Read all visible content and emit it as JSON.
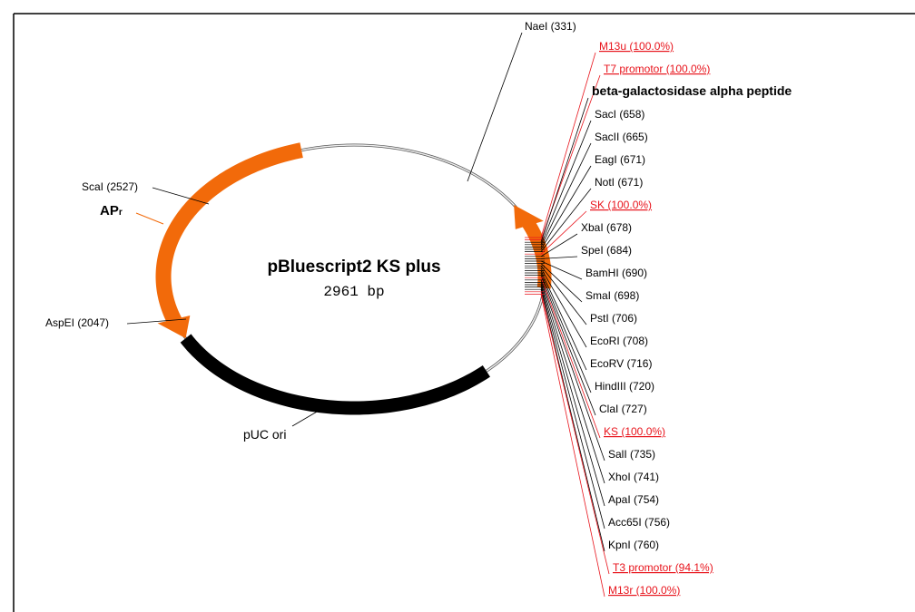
{
  "title": "pBluescript2 KS plus",
  "size": "2961 bp",
  "features": {
    "nae": "NaeI (331)",
    "sca": "ScaI (2527)",
    "apr": {
      "text": "AP",
      "sub": "r"
    },
    "asp": "AspEI (2047)",
    "puc": "pUC ori"
  },
  "sites": [
    {
      "text": "M13u (100.0%)",
      "color": "#e8141c"
    },
    {
      "text": "T7 promotor (100.0%)",
      "color": "#e8141c"
    },
    {
      "text": "beta-galactosidase alpha peptide",
      "color": "#000000"
    },
    {
      "text": "SacI (658)",
      "color": "#000000"
    },
    {
      "text": "SacII (665)",
      "color": "#000000"
    },
    {
      "text": "EagI (671)",
      "color": "#000000"
    },
    {
      "text": "NotI (671)",
      "color": "#000000"
    },
    {
      "text": "SK (100.0%)",
      "color": "#e8141c"
    },
    {
      "text": "XbaI (678)",
      "color": "#000000"
    },
    {
      "text": "SpeI (684)",
      "color": "#000000"
    },
    {
      "text": "BamHI (690)",
      "color": "#000000"
    },
    {
      "text": "SmaI (698)",
      "color": "#000000"
    },
    {
      "text": "PstI (706)",
      "color": "#000000"
    },
    {
      "text": "EcoRI (708)",
      "color": "#000000"
    },
    {
      "text": "EcoRV (716)",
      "color": "#000000"
    },
    {
      "text": "HindIII (720)",
      "color": "#000000"
    },
    {
      "text": "ClaI (727)",
      "color": "#000000"
    },
    {
      "text": "KS (100.0%)",
      "color": "#e8141c"
    },
    {
      "text": "SalI (735)",
      "color": "#000000"
    },
    {
      "text": "XhoI (741)",
      "color": "#000000"
    },
    {
      "text": "ApaI (754)",
      "color": "#000000"
    },
    {
      "text": "Acc65I (756)",
      "color": "#000000"
    },
    {
      "text": "KpnI (760)",
      "color": "#000000"
    },
    {
      "text": "T3 promotor (94.1%)",
      "color": "#e8141c"
    },
    {
      "text": "M13r (100.0%)",
      "color": "#e8141c"
    }
  ]
}
